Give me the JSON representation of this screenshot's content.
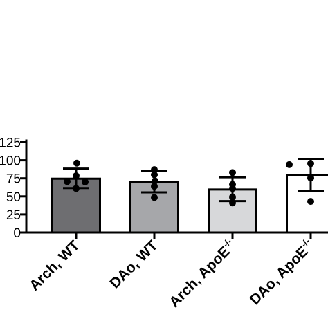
{
  "chart_data": {
    "type": "bar",
    "categories": [
      "Arch, WT",
      "DAo, WT",
      "Arch, ApoE-/-",
      "DAo, ApoE-/-"
    ],
    "values": [
      74.5,
      69.5,
      59.5,
      79.5
    ],
    "error_upper": [
      88.5,
      85.5,
      76.5,
      102
    ],
    "error_lower": [
      61.5,
      55.5,
      43.5,
      58
    ],
    "points": [
      [
        96,
        78.5,
        70.5,
        70,
        61
      ],
      [
        87,
        80,
        71.5,
        64,
        48.5
      ],
      [
        83,
        66.5,
        61,
        49,
        41
      ],
      [
        94,
        95.5,
        75.5,
        43
      ]
    ],
    "bar_colors": [
      "#6e6e71",
      "#a6a7aa",
      "#d7d8da",
      "#ffffff"
    ],
    "ylim": [
      0,
      125
    ],
    "yticks": [
      0,
      25,
      50,
      75,
      100,
      125
    ],
    "ytick_labels": [
      "0",
      "25",
      "50",
      "75",
      "100",
      "125"
    ],
    "xtick_labels": [
      "Arch, WT",
      "DAo, WT",
      "Arch, ApoE",
      "DAo, ApoE"
    ],
    "xtick_superscripts": [
      "",
      "",
      "-/-",
      "-/-"
    ],
    "title": "",
    "xlabel": "",
    "ylabel": "",
    "grid": false,
    "legend": "none"
  }
}
